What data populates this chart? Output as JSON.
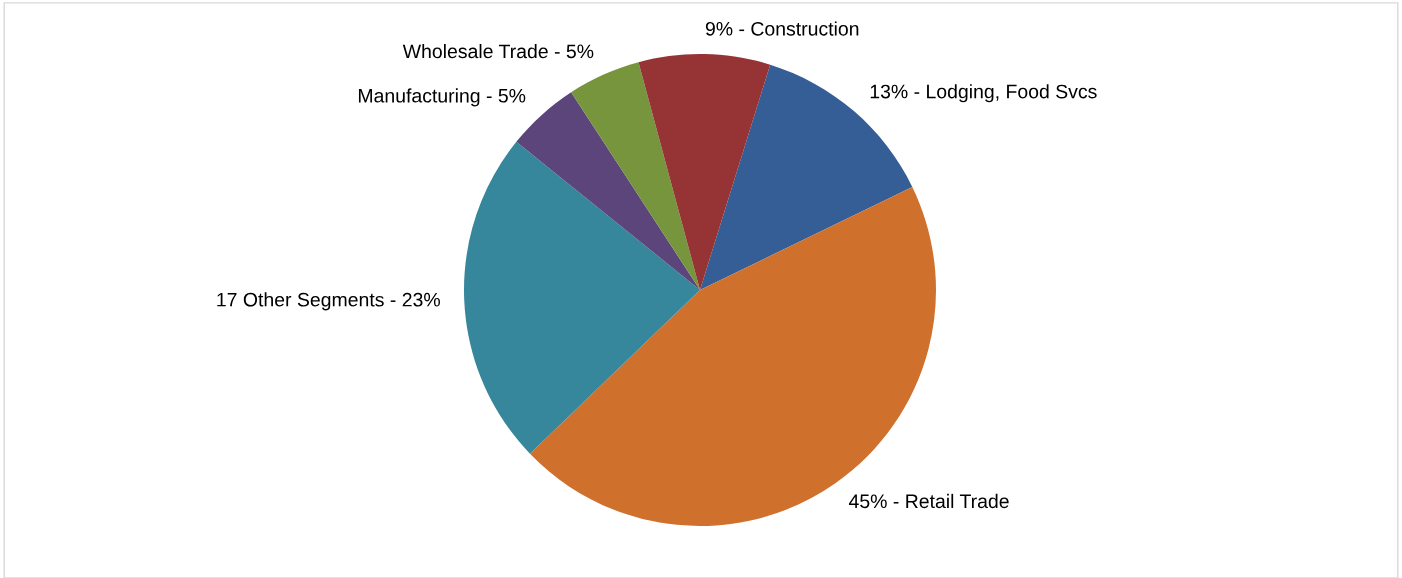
{
  "chart_data": {
    "type": "pie",
    "categories": [
      "13% - Lodging, Food Svcs",
      "45% - Retail Trade",
      "17 Other Segments - 23%",
      "Manufacturing - 5%",
      "Wholesale Trade - 5%",
      "9% - Construction"
    ],
    "values": [
      13,
      45,
      23,
      5,
      5,
      9
    ],
    "colors": [
      "#355d96",
      "#d0702d",
      "#37879c",
      "#5b457b",
      "#77953d",
      "#953335"
    ],
    "legend": false
  }
}
